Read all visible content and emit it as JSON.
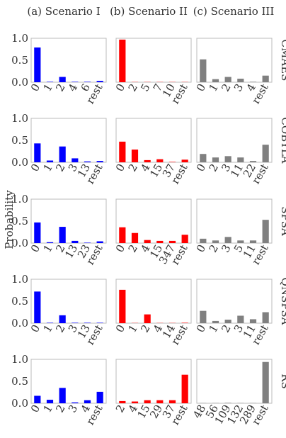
{
  "figure": {
    "ylabel": "Probability",
    "columns": [
      "(a) Scenario I",
      "(b) Scenario II",
      "(c) Scenario III"
    ],
    "rows": [
      "CMAES",
      "COBYLA",
      "SPSA",
      "QNSPSA",
      "RS"
    ],
    "yticks": [
      "0.0",
      "0.5",
      "1.0"
    ],
    "colors": {
      "col1": "#0000ff",
      "col2": "#ff0000",
      "col3": "#808080"
    }
  },
  "chart_data": [
    {
      "type": "bar",
      "row": "CMAES",
      "column": "(a) Scenario I",
      "categories": [
        "0",
        "1",
        "2",
        "4",
        "6",
        "rest"
      ],
      "values": [
        0.79,
        0.01,
        0.12,
        0.01,
        0.01,
        0.03
      ],
      "ylim": [
        0,
        1
      ]
    },
    {
      "type": "bar",
      "row": "CMAES",
      "column": "(b) Scenario II",
      "categories": [
        "0",
        "2",
        "5",
        "7",
        "10",
        "rest"
      ],
      "values": [
        0.97,
        0.005,
        0.005,
        0.005,
        0.005,
        0.005
      ],
      "ylim": [
        0,
        1
      ]
    },
    {
      "type": "bar",
      "row": "CMAES",
      "column": "(c) Scenario III",
      "categories": [
        "0",
        "1",
        "2",
        "3",
        "4",
        "rest"
      ],
      "values": [
        0.52,
        0.07,
        0.12,
        0.08,
        0.01,
        0.15
      ],
      "ylim": [
        0,
        1
      ]
    },
    {
      "type": "bar",
      "row": "COBYLA",
      "column": "(a) Scenario I",
      "categories": [
        "0",
        "1",
        "2",
        "3",
        "13",
        "rest"
      ],
      "values": [
        0.43,
        0.04,
        0.36,
        0.09,
        0.02,
        0.03
      ],
      "ylim": [
        0,
        1
      ]
    },
    {
      "type": "bar",
      "row": "COBYLA",
      "column": "(b) Scenario II",
      "categories": [
        "0",
        "2",
        "4",
        "15",
        "37",
        "rest"
      ],
      "values": [
        0.47,
        0.29,
        0.05,
        0.07,
        0.01,
        0.06
      ],
      "ylim": [
        0,
        1
      ]
    },
    {
      "type": "bar",
      "row": "COBYLA",
      "column": "(c) Scenario III",
      "categories": [
        "0",
        "2",
        "3",
        "11",
        "22",
        "rest"
      ],
      "values": [
        0.19,
        0.11,
        0.14,
        0.11,
        0.03,
        0.4
      ],
      "ylim": [
        0,
        1
      ]
    },
    {
      "type": "bar",
      "row": "SPSA",
      "column": "(a) Scenario I",
      "categories": [
        "0",
        "1",
        "2",
        "13",
        "23",
        "rest"
      ],
      "values": [
        0.47,
        0.02,
        0.37,
        0.05,
        0.01,
        0.04
      ],
      "ylim": [
        0,
        1
      ]
    },
    {
      "type": "bar",
      "row": "SPSA",
      "column": "(b) Scenario II",
      "categories": [
        "0",
        "2",
        "4",
        "15",
        "347",
        "rest"
      ],
      "values": [
        0.36,
        0.23,
        0.07,
        0.05,
        0.05,
        0.19
      ],
      "ylim": [
        0,
        1
      ]
    },
    {
      "type": "bar",
      "row": "SPSA",
      "column": "(c) Scenario III",
      "categories": [
        "0",
        "2",
        "3",
        "5",
        "11",
        "rest"
      ],
      "values": [
        0.1,
        0.06,
        0.14,
        0.06,
        0.06,
        0.53
      ],
      "ylim": [
        0,
        1
      ]
    },
    {
      "type": "bar",
      "row": "QNSPSA",
      "column": "(a) Scenario I",
      "categories": [
        "0",
        "1",
        "2",
        "3",
        "13",
        "rest"
      ],
      "values": [
        0.72,
        0.01,
        0.18,
        0.01,
        0.01,
        0.01
      ],
      "ylim": [
        0,
        1
      ]
    },
    {
      "type": "bar",
      "row": "QNSPSA",
      "column": "(b) Scenario II",
      "categories": [
        "0",
        "1",
        "2",
        "4",
        "14",
        "rest"
      ],
      "values": [
        0.76,
        0.005,
        0.2,
        0.005,
        0.005,
        0.01
      ],
      "ylim": [
        0,
        1
      ]
    },
    {
      "type": "bar",
      "row": "QNSPSA",
      "column": "(c) Scenario III",
      "categories": [
        "0",
        "1",
        "2",
        "3",
        "11",
        "rest"
      ],
      "values": [
        0.28,
        0.05,
        0.08,
        0.17,
        0.09,
        0.25
      ],
      "ylim": [
        0,
        1
      ]
    },
    {
      "type": "bar",
      "row": "RS",
      "column": "(a) Scenario I",
      "categories": [
        "0",
        "1",
        "2",
        "3",
        "4",
        "rest"
      ],
      "values": [
        0.17,
        0.08,
        0.35,
        0.02,
        0.07,
        0.26
      ],
      "ylim": [
        0,
        1
      ]
    },
    {
      "type": "bar",
      "row": "RS",
      "column": "(b) Scenario II",
      "categories": [
        "2",
        "4",
        "15",
        "29",
        "37",
        "rest"
      ],
      "values": [
        0.05,
        0.04,
        0.07,
        0.07,
        0.07,
        0.65
      ],
      "ylim": [
        0,
        1
      ]
    },
    {
      "type": "bar",
      "row": "RS",
      "column": "(c) Scenario III",
      "categories": [
        "48",
        "56",
        "109",
        "132",
        "289",
        "rest"
      ],
      "values": [
        0.005,
        0.005,
        0.01,
        0.005,
        0.005,
        0.94
      ],
      "ylim": [
        0,
        1
      ]
    }
  ]
}
